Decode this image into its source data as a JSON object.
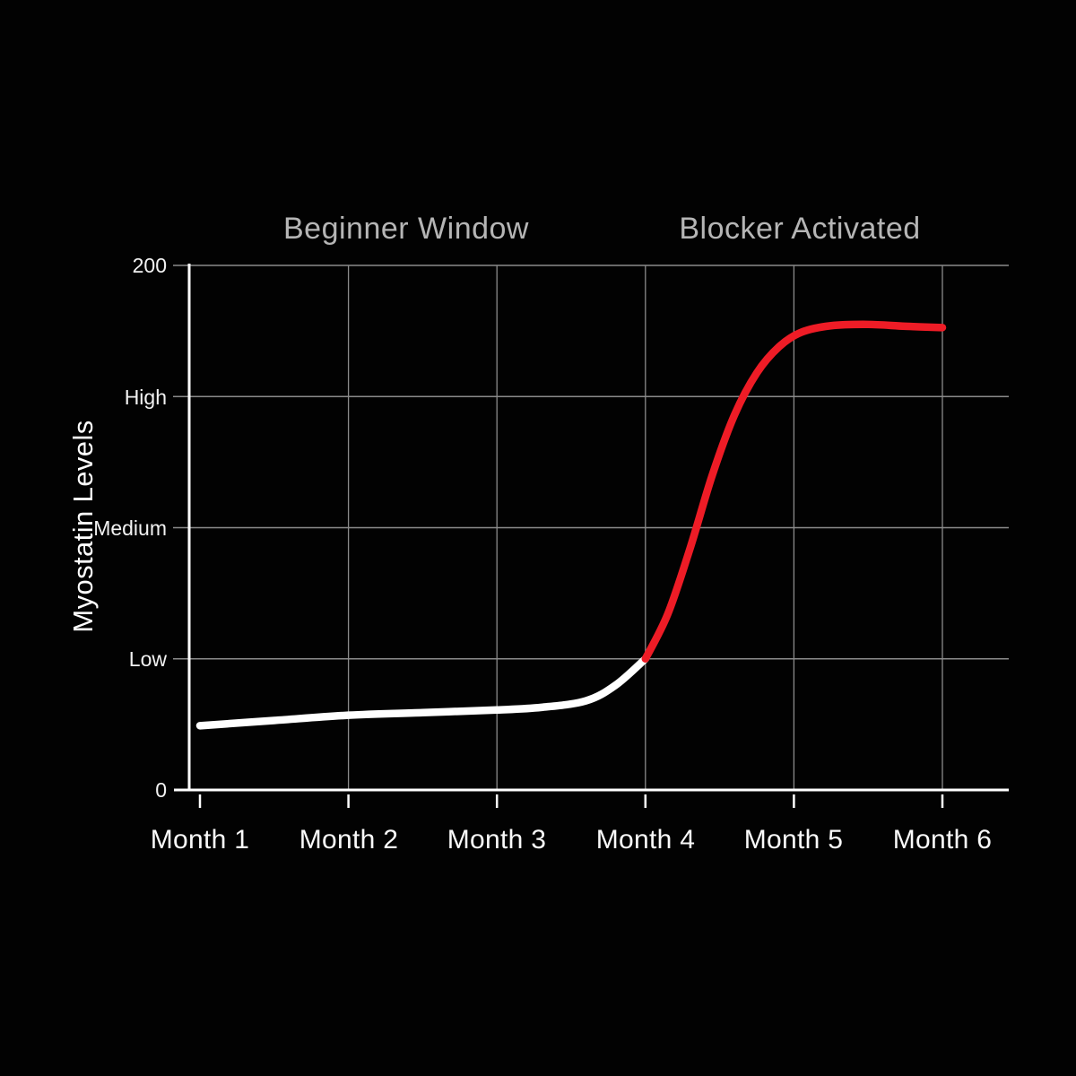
{
  "chart": {
    "annotation_left": "Beginner Window",
    "annotation_right": "Blocker Activated",
    "y_axis_title": "Myostatin Levels",
    "y_ticks": [
      "200",
      "High",
      "Medium",
      "Low",
      "0"
    ],
    "x_ticks": [
      "Month 1",
      "Month 2",
      "Month 3",
      "Month 4",
      "Month 5",
      "Month 6"
    ]
  },
  "colors": {
    "background": "#020202",
    "grid": "#8b8b8b",
    "axis": "#ffffff",
    "pre_blocker_line": "#ffffff",
    "post_blocker_line": "#ee1c26",
    "annotation_text": "#b5b5b5",
    "tick_text": "#f2f2f2"
  },
  "chart_data": {
    "type": "line",
    "title": "",
    "xlabel": "",
    "ylabel": "Myostatin Levels",
    "x_categories": [
      "Month 1",
      "Month 2",
      "Month 3",
      "Month 4",
      "Month 5",
      "Month 6"
    ],
    "y_tick_values": {
      "200": 200,
      "High": 150,
      "Medium": 100,
      "Low": 50,
      "0": 0
    },
    "xlim": [
      1,
      6
    ],
    "ylim": [
      0,
      200
    ],
    "grid": true,
    "legend": false,
    "annotations": [
      {
        "text": "Beginner Window",
        "x_months": 2.4,
        "y_value": 213
      },
      {
        "text": "Blocker Activated",
        "x_months": 5.05,
        "y_value": 213
      }
    ],
    "transition_point": {
      "x_months": 4,
      "y_value": 50
    },
    "series": [
      {
        "name": "pre-blocker (white)",
        "color": "#ffffff",
        "points": [
          [
            1,
            24.5
          ],
          [
            1.5,
            26.5
          ],
          [
            2,
            28.5
          ],
          [
            2.5,
            29.5
          ],
          [
            3,
            30.5
          ],
          [
            3.3,
            31.5
          ],
          [
            3.6,
            34
          ],
          [
            3.8,
            40
          ],
          [
            4,
            50
          ]
        ]
      },
      {
        "name": "post-blocker (red)",
        "color": "#ee1c26",
        "points": [
          [
            4,
            50
          ],
          [
            4.15,
            67
          ],
          [
            4.3,
            92
          ],
          [
            4.45,
            120
          ],
          [
            4.6,
            143
          ],
          [
            4.75,
            159
          ],
          [
            4.9,
            169
          ],
          [
            5.05,
            174.5
          ],
          [
            5.25,
            177
          ],
          [
            5.5,
            177.5
          ],
          [
            5.75,
            176.8
          ],
          [
            6,
            176.3
          ]
        ]
      }
    ]
  }
}
